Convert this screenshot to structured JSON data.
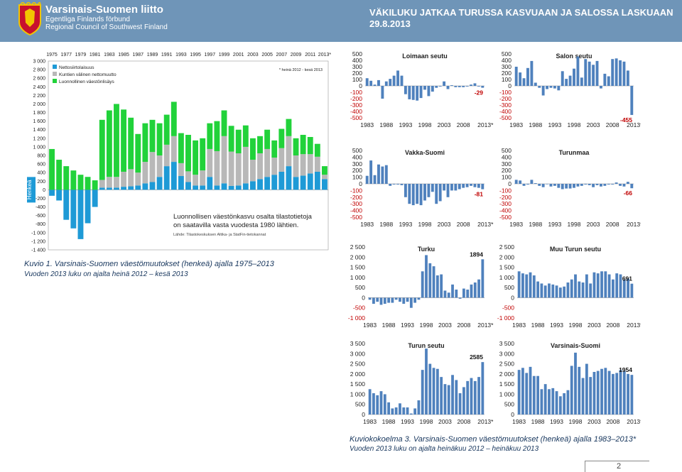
{
  "header": {
    "org_name": "Varsinais-Suomen liitto",
    "org_swedish": "Egentliga Finlands förbund",
    "org_english": "Regional Council of Southwest Finland",
    "headline_line1": "VÄKILUKU JATKAA TURUSSA KASVUAAN JA SALOSSA LASKUAAN",
    "headline_line2": "29.8.2013",
    "logo": "coat-of-arms-shield"
  },
  "colors": {
    "header_bg": "#6f95b8",
    "net_migration": "#1e9ad6",
    "municipal_migration": "#b8b8b8",
    "natural_increase": "#21d23a",
    "small_bars": "#4f81bd",
    "label_red": "#c00000"
  },
  "main_chart": {
    "caption_title": "Kuvio 1. Varsinais-Suomen väestömuutokset (henkeä) ajalla 1975–2013",
    "caption_sub": "Vuoden 2013 luku on ajalta heinä 2012 – kesä 2013",
    "note": "* heinä 2012 - kesä 2013",
    "annotation_line1": "Luonnollisen väestönkasvu osalta tilastotietoja",
    "annotation_line2": "on saatavilla vasta vuodesta 1980 lähtien.",
    "source": "Lähde: Tilastokeskuksen Altika- ja StatFin-tietokannat"
  },
  "bottom_caption": {
    "title": "Kuviokokoelma 3. Varsinais-Suomen väestömuutokset (henkeä) ajalla 1983–2013*",
    "sub": "Vuoden 2013 luku on ajalta heinäkuu 2012 – heinäkuu 2013"
  },
  "page_number": "2",
  "chart_data": [
    {
      "type": "bar",
      "title": "",
      "ylabel": "Henkeä",
      "stacked": true,
      "ylim": [
        -1400,
        3000
      ],
      "yticks": [
        "3 000",
        "2 800",
        "2 600",
        "2 400",
        "2 200",
        "2 000",
        "1 800",
        "1 600",
        "1 400",
        "1 200",
        "1 000",
        "800",
        "600",
        "400",
        "200",
        "0",
        "-200",
        "-400",
        "-600",
        "-800",
        "-1 000",
        "-1 200",
        "-1 400"
      ],
      "xtick_labels": [
        "1975",
        "1977",
        "1979",
        "1981",
        "1983",
        "1985",
        "1987",
        "1989",
        "1991",
        "1993",
        "1995",
        "1997",
        "1999",
        "2001",
        "2003",
        "2005",
        "2007",
        "2009",
        "2011",
        "2013*"
      ],
      "legend_position": "top-left",
      "categories": [
        "1975",
        "1976",
        "1977",
        "1978",
        "1979",
        "1980",
        "1981",
        "1982",
        "1983",
        "1984",
        "1985",
        "1986",
        "1987",
        "1988",
        "1989",
        "1990",
        "1991",
        "1992",
        "1993",
        "1994",
        "1995",
        "1996",
        "1997",
        "1998",
        "1999",
        "2000",
        "2001",
        "2002",
        "2003",
        "2004",
        "2005",
        "2006",
        "2007",
        "2008",
        "2009",
        "2010",
        "2011",
        "2012",
        "2013*"
      ],
      "series": [
        {
          "name": "Nettosiirtolaisuus",
          "values": [
            -140,
            -250,
            -700,
            -900,
            -1150,
            -780,
            -400,
            50,
            50,
            50,
            70,
            80,
            100,
            150,
            180,
            300,
            550,
            650,
            320,
            180,
            100,
            100,
            300,
            100,
            150,
            90,
            100,
            150,
            200,
            250,
            300,
            350,
            420,
            550,
            300,
            330,
            380,
            420,
            250
          ]
        },
        {
          "name": "Kuntien välinen nettomuutto",
          "values": [
            0,
            0,
            0,
            0,
            0,
            0,
            0,
            180,
            250,
            250,
            350,
            400,
            300,
            500,
            700,
            500,
            500,
            600,
            300,
            250,
            250,
            350,
            650,
            800,
            1100,
            800,
            750,
            850,
            500,
            600,
            650,
            400,
            550,
            700,
            500,
            500,
            450,
            350,
            100
          ]
        },
        {
          "name": "Luonnollinen väestönlisäys",
          "values": [
            950,
            700,
            550,
            450,
            350,
            300,
            220,
            1400,
            1550,
            1700,
            1450,
            1200,
            900,
            900,
            750,
            750,
            700,
            800,
            700,
            850,
            800,
            750,
            600,
            700,
            600,
            600,
            550,
            500,
            500,
            400,
            450,
            400,
            450,
            400,
            400,
            450,
            400,
            300,
            200
          ]
        }
      ]
    },
    {
      "type": "bar",
      "title": "Loimaan seutu",
      "ylim": [
        -500,
        500
      ],
      "yticks": [
        "500",
        "400",
        "300",
        "200",
        "100",
        "0",
        "-100",
        "-200",
        "-300",
        "-400",
        "-500"
      ],
      "xtick_labels": [
        "1983",
        "1988",
        "1993",
        "1998",
        "2003",
        "2008",
        "2013*"
      ],
      "end_label": "-29",
      "end_label_color": "red",
      "values": [
        120,
        80,
        20,
        90,
        -200,
        70,
        110,
        160,
        240,
        160,
        -130,
        -210,
        -220,
        -230,
        -190,
        -60,
        -160,
        -90,
        -30,
        -10,
        70,
        -50,
        10,
        -20,
        -20,
        -20,
        -10,
        20,
        40,
        -10,
        -29
      ]
    },
    {
      "type": "bar",
      "title": "Salon seutu",
      "ylim": [
        -500,
        500
      ],
      "yticks": [
        "500",
        "400",
        "300",
        "200",
        "100",
        "0",
        "-100",
        "-200",
        "-300",
        "-400",
        "-500"
      ],
      "xtick_labels": [
        "1983",
        "1988",
        "1993",
        "1998",
        "2003",
        "2008",
        "2013*"
      ],
      "end_label": "-455",
      "end_label_color": "red",
      "values": [
        300,
        210,
        120,
        280,
        390,
        50,
        -30,
        -150,
        -50,
        -30,
        -40,
        -70,
        230,
        110,
        160,
        270,
        460,
        130,
        420,
        380,
        330,
        390,
        -40,
        190,
        150,
        420,
        430,
        400,
        380,
        240,
        -455
      ]
    },
    {
      "type": "bar",
      "title": "Vakka-Suomi",
      "ylim": [
        -500,
        500
      ],
      "yticks": [
        "500",
        "400",
        "300",
        "200",
        "100",
        "0",
        "-100",
        "-200",
        "-300",
        "-400",
        "-500"
      ],
      "xtick_labels": [
        "1983",
        "1988",
        "1993",
        "1998",
        "2003",
        "2008",
        "2013*"
      ],
      "end_label": "-81",
      "end_label_color": "red",
      "values": [
        120,
        350,
        130,
        290,
        260,
        280,
        -30,
        -10,
        -10,
        -20,
        -200,
        -300,
        -320,
        -300,
        -320,
        -250,
        -200,
        -120,
        -300,
        -260,
        -100,
        -200,
        -100,
        -100,
        -80,
        -60,
        -50,
        -30,
        -50,
        -60,
        -81
      ]
    },
    {
      "type": "bar",
      "title": "Turunmaa",
      "ylim": [
        -500,
        500
      ],
      "yticks": [
        "500",
        "400",
        "300",
        "200",
        "100",
        "0",
        "-100",
        "-200",
        "-300",
        "-400",
        "-500"
      ],
      "xtick_labels": [
        "1983",
        "1988",
        "1993",
        "1998",
        "2003",
        "2008",
        "2013*"
      ],
      "end_label": "-66",
      "end_label_color": "red",
      "values": [
        60,
        50,
        -30,
        -10,
        60,
        10,
        -30,
        -50,
        0,
        -40,
        -30,
        -60,
        -80,
        -70,
        -70,
        -60,
        -40,
        -30,
        -10,
        -20,
        -50,
        -20,
        -40,
        -30,
        -10,
        -10,
        20,
        -30,
        -40,
        30,
        -66
      ]
    },
    {
      "type": "bar",
      "title": "Turku",
      "ylim": [
        -1000,
        2500
      ],
      "yticks": [
        "2 500",
        "2 000",
        "1 500",
        "1 000",
        "500",
        "0",
        "-500",
        "-1 000"
      ],
      "xtick_labels": [
        "1983",
        "1988",
        "1993",
        "1998",
        "2003",
        "2008",
        "2013*"
      ],
      "end_label": "1894",
      "end_label_color": "black",
      "values": [
        -100,
        -300,
        -200,
        -350,
        -300,
        -250,
        -250,
        -100,
        -200,
        -300,
        -200,
        -500,
        -250,
        -100,
        1300,
        2100,
        1700,
        1550,
        1100,
        1150,
        350,
        250,
        650,
        400,
        -50,
        450,
        400,
        650,
        750,
        900,
        1894
      ]
    },
    {
      "type": "bar",
      "title": "Muu Turun seutu",
      "ylim": [
        -1000,
        2500
      ],
      "yticks": [
        "2 500",
        "2 000",
        "1 500",
        "1 000",
        "500",
        "0",
        "-500",
        "-1 000"
      ],
      "xtick_labels": [
        "1983",
        "1988",
        "1993",
        "1998",
        "2003",
        "2008",
        "2013*"
      ],
      "end_label": "691",
      "end_label_color": "black",
      "values": [
        1300,
        1200,
        1150,
        1250,
        1100,
        800,
        700,
        600,
        700,
        650,
        600,
        500,
        550,
        750,
        900,
        1150,
        800,
        750,
        1150,
        700,
        1250,
        1200,
        1300,
        1300,
        1150,
        900,
        1200,
        1150,
        900,
        950,
        691
      ]
    },
    {
      "type": "bar",
      "title": "Turun seutu",
      "ylim": [
        0,
        3500
      ],
      "yticks": [
        "3 500",
        "3 000",
        "2 500",
        "2 000",
        "1 500",
        "1 000",
        "500",
        "0"
      ],
      "xtick_labels": [
        "1983",
        "1988",
        "1993",
        "1998",
        "2003",
        "2008",
        "2013*"
      ],
      "end_label": "2585",
      "end_label_color": "black",
      "values": [
        1250,
        1050,
        950,
        1150,
        1000,
        600,
        300,
        350,
        550,
        350,
        350,
        50,
        300,
        700,
        2200,
        3250,
        2500,
        2300,
        2250,
        1850,
        1500,
        1450,
        1950,
        1700,
        1050,
        1350,
        1650,
        1800,
        1650,
        1850,
        2585
      ]
    },
    {
      "type": "bar",
      "title": "Varsinais-Suomi",
      "ylim": [
        0,
        3500
      ],
      "yticks": [
        "3 500",
        "3 000",
        "2 500",
        "2 000",
        "1 500",
        "1 000",
        "500",
        "0"
      ],
      "xtick_labels": [
        "1983",
        "1988",
        "1993",
        "1998",
        "2003",
        "2008",
        "2013*"
      ],
      "end_label": "1954",
      "end_label_color": "black",
      "values": [
        2200,
        2300,
        2050,
        2350,
        1900,
        1900,
        1250,
        1500,
        1250,
        1300,
        1150,
        900,
        1050,
        1200,
        2400,
        3050,
        2350,
        1800,
        2500,
        1850,
        2100,
        2150,
        2250,
        2300,
        2150,
        2000,
        2050,
        2200,
        2150,
        2000,
        1954
      ]
    }
  ]
}
